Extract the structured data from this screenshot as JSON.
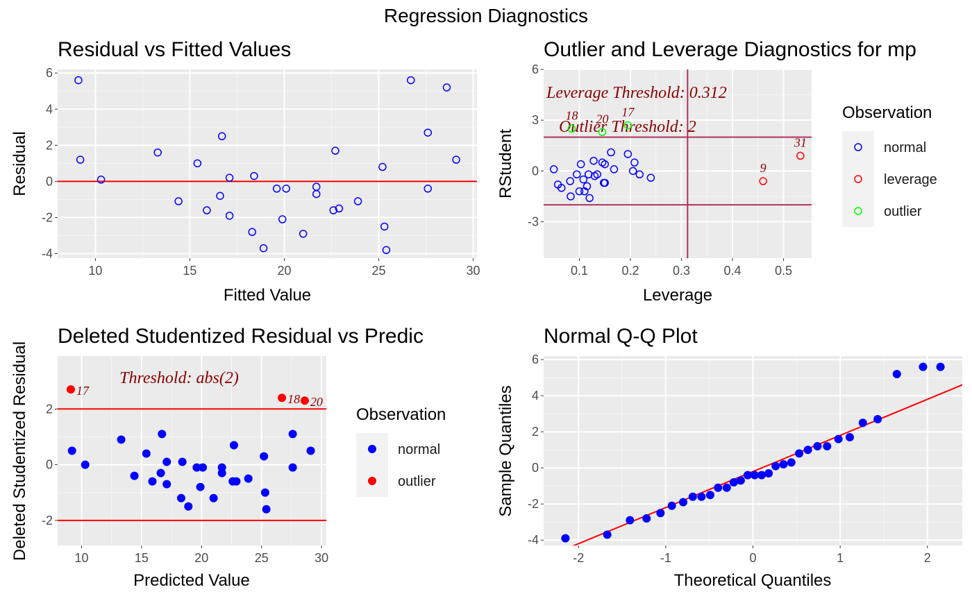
{
  "title": "Regression Diagnostics",
  "colors": {
    "panel": "#ebebeb",
    "grid_major": "#ffffff",
    "grid_minor": "#f5f5f5",
    "normal": "#0000ff",
    "leverage": "#ff0000",
    "outlier": "#00ff00",
    "refline": "#ff0000",
    "threshold_line": "#b03060",
    "annotation": "#8b0000"
  },
  "chart_data": [
    {
      "type": "scatter",
      "title": "Residual vs Fitted Values",
      "xlabel": "Fitted Value",
      "ylabel": "Residual",
      "xlim": [
        8,
        30.2
      ],
      "ylim": [
        -4.25,
        6.2
      ],
      "xticks": [
        10,
        15,
        20,
        25,
        30
      ],
      "yticks": [
        -4,
        -2,
        0,
        2,
        4,
        6
      ],
      "reference_line_y": 0,
      "marker": "open-circle",
      "points": [
        {
          "x": 9.1,
          "y": 5.6
        },
        {
          "x": 9.2,
          "y": 1.2
        },
        {
          "x": 10.3,
          "y": 0.1
        },
        {
          "x": 13.3,
          "y": 1.6
        },
        {
          "x": 14.4,
          "y": -1.1
        },
        {
          "x": 15.4,
          "y": 1.0
        },
        {
          "x": 15.9,
          "y": -1.6
        },
        {
          "x": 16.6,
          "y": -0.8
        },
        {
          "x": 16.7,
          "y": 2.5
        },
        {
          "x": 17.1,
          "y": 0.2
        },
        {
          "x": 17.1,
          "y": -1.9
        },
        {
          "x": 18.3,
          "y": -2.8
        },
        {
          "x": 18.4,
          "y": 0.3
        },
        {
          "x": 18.9,
          "y": -3.7
        },
        {
          "x": 19.6,
          "y": -0.4
        },
        {
          "x": 19.9,
          "y": -2.1
        },
        {
          "x": 20.1,
          "y": -0.4
        },
        {
          "x": 21.0,
          "y": -2.9
        },
        {
          "x": 21.7,
          "y": -0.3
        },
        {
          "x": 21.7,
          "y": -0.7
        },
        {
          "x": 22.6,
          "y": -1.6
        },
        {
          "x": 22.7,
          "y": 1.7
        },
        {
          "x": 22.9,
          "y": -1.5
        },
        {
          "x": 23.9,
          "y": -1.1
        },
        {
          "x": 25.2,
          "y": 0.8
        },
        {
          "x": 25.3,
          "y": -2.5
        },
        {
          "x": 25.4,
          "y": -3.8
        },
        {
          "x": 26.7,
          "y": 5.6
        },
        {
          "x": 27.6,
          "y": 2.7
        },
        {
          "x": 27.6,
          "y": -0.4
        },
        {
          "x": 28.6,
          "y": 5.2
        },
        {
          "x": 29.1,
          "y": 1.2
        }
      ]
    },
    {
      "type": "scatter",
      "title": "Outlier and Leverage Diagnostics for mp",
      "xlabel": "Leverage",
      "ylabel": "RStudent",
      "xlim": [
        0.03,
        0.555
      ],
      "ylim": [
        -5.15,
        6.0
      ],
      "xticks": [
        0.1,
        0.2,
        0.3,
        0.4,
        0.5
      ],
      "yticks": [
        -3,
        0,
        3,
        6
      ],
      "leverage_threshold": 0.312,
      "outlier_threshold": 2,
      "annotations": [
        "Leverage Threshold: 0.312",
        "Outlier Threshold: 2"
      ],
      "legend": {
        "title": "Observation",
        "position": "right",
        "entries": [
          "normal",
          "leverage",
          "outlier"
        ]
      },
      "points": [
        {
          "x": 0.05,
          "y": 0.1,
          "group": "normal"
        },
        {
          "x": 0.058,
          "y": -0.8,
          "group": "normal"
        },
        {
          "x": 0.065,
          "y": -1.0,
          "group": "normal"
        },
        {
          "x": 0.082,
          "y": -0.6,
          "group": "normal"
        },
        {
          "x": 0.083,
          "y": -1.5,
          "group": "normal"
        },
        {
          "x": 0.095,
          "y": -0.2,
          "group": "normal"
        },
        {
          "x": 0.1,
          "y": -1.2,
          "group": "normal"
        },
        {
          "x": 0.103,
          "y": 0.4,
          "group": "normal"
        },
        {
          "x": 0.108,
          "y": -0.5,
          "group": "normal"
        },
        {
          "x": 0.11,
          "y": -1.2,
          "group": "normal"
        },
        {
          "x": 0.115,
          "y": -0.9,
          "group": "normal"
        },
        {
          "x": 0.118,
          "y": -0.2,
          "group": "normal"
        },
        {
          "x": 0.12,
          "y": -1.6,
          "group": "normal"
        },
        {
          "x": 0.128,
          "y": 0.6,
          "group": "normal"
        },
        {
          "x": 0.13,
          "y": -0.3,
          "group": "normal"
        },
        {
          "x": 0.135,
          "y": -0.2,
          "group": "normal"
        },
        {
          "x": 0.145,
          "y": 0.5,
          "group": "normal"
        },
        {
          "x": 0.148,
          "y": -0.7,
          "group": "normal"
        },
        {
          "x": 0.15,
          "y": 0.4,
          "group": "normal"
        },
        {
          "x": 0.15,
          "y": -0.7,
          "group": "normal"
        },
        {
          "x": 0.162,
          "y": 1.1,
          "group": "normal"
        },
        {
          "x": 0.168,
          "y": 0.1,
          "group": "normal"
        },
        {
          "x": 0.195,
          "y": 1.0,
          "group": "normal"
        },
        {
          "x": 0.205,
          "y": 0.0,
          "group": "normal"
        },
        {
          "x": 0.208,
          "y": 0.5,
          "group": "normal"
        },
        {
          "x": 0.218,
          "y": -0.2,
          "group": "normal"
        },
        {
          "x": 0.24,
          "y": -0.4,
          "group": "normal"
        },
        {
          "x": 0.085,
          "y": 2.5,
          "group": "outlier",
          "label": "18"
        },
        {
          "x": 0.145,
          "y": 2.3,
          "group": "outlier",
          "label": "20"
        },
        {
          "x": 0.195,
          "y": 2.7,
          "group": "outlier",
          "label": "17"
        },
        {
          "x": 0.46,
          "y": -0.6,
          "group": "leverage",
          "label": "9"
        },
        {
          "x": 0.533,
          "y": 0.9,
          "group": "leverage",
          "label": "31"
        }
      ]
    },
    {
      "type": "scatter",
      "title": "Deleted Studentized Residual vs Predic",
      "xlabel": "Predicted Value",
      "ylabel": "Deleted Studentized Residual",
      "xlim": [
        8,
        30.4
      ],
      "ylim": [
        -2.9,
        3.9
      ],
      "xticks": [
        10,
        15,
        20,
        25,
        30
      ],
      "yticks": [
        -2,
        0,
        2
      ],
      "threshold": 2,
      "annotation": "Threshold: abs(2)",
      "legend": {
        "title": "Observation",
        "position": "right",
        "entries": [
          "normal",
          "outlier"
        ]
      },
      "points": [
        {
          "x": 9.1,
          "y": 2.7,
          "group": "outlier",
          "label": "17"
        },
        {
          "x": 9.2,
          "y": 0.5,
          "group": "normal"
        },
        {
          "x": 10.3,
          "y": 0.0,
          "group": "normal"
        },
        {
          "x": 13.3,
          "y": 0.9,
          "group": "normal"
        },
        {
          "x": 14.4,
          "y": -0.4,
          "group": "normal"
        },
        {
          "x": 15.4,
          "y": 0.4,
          "group": "normal"
        },
        {
          "x": 15.9,
          "y": -0.6,
          "group": "normal"
        },
        {
          "x": 16.6,
          "y": -0.3,
          "group": "normal"
        },
        {
          "x": 16.7,
          "y": 1.1,
          "group": "normal"
        },
        {
          "x": 17.1,
          "y": 0.1,
          "group": "normal"
        },
        {
          "x": 17.1,
          "y": -0.7,
          "group": "normal"
        },
        {
          "x": 18.3,
          "y": -1.2,
          "group": "normal"
        },
        {
          "x": 18.4,
          "y": 0.1,
          "group": "normal"
        },
        {
          "x": 18.9,
          "y": -1.5,
          "group": "normal"
        },
        {
          "x": 19.6,
          "y": -0.1,
          "group": "normal"
        },
        {
          "x": 19.9,
          "y": -0.8,
          "group": "normal"
        },
        {
          "x": 20.1,
          "y": -0.1,
          "group": "normal"
        },
        {
          "x": 21.0,
          "y": -1.2,
          "group": "normal"
        },
        {
          "x": 21.7,
          "y": -0.1,
          "group": "normal"
        },
        {
          "x": 21.7,
          "y": -0.3,
          "group": "normal"
        },
        {
          "x": 22.6,
          "y": -0.6,
          "group": "normal"
        },
        {
          "x": 22.7,
          "y": 0.7,
          "group": "normal"
        },
        {
          "x": 22.9,
          "y": -0.6,
          "group": "normal"
        },
        {
          "x": 23.9,
          "y": -0.5,
          "group": "normal"
        },
        {
          "x": 25.2,
          "y": 0.3,
          "group": "normal"
        },
        {
          "x": 25.3,
          "y": -1.0,
          "group": "normal"
        },
        {
          "x": 25.4,
          "y": -1.6,
          "group": "normal"
        },
        {
          "x": 26.7,
          "y": 2.4,
          "group": "outlier",
          "label": "18"
        },
        {
          "x": 27.6,
          "y": 1.1,
          "group": "normal"
        },
        {
          "x": 27.6,
          "y": -0.1,
          "group": "normal"
        },
        {
          "x": 28.6,
          "y": 2.3,
          "group": "outlier",
          "label": "20"
        },
        {
          "x": 29.1,
          "y": 0.5,
          "group": "normal"
        }
      ]
    },
    {
      "type": "scatter",
      "title": "Normal Q-Q Plot",
      "xlabel": "Theoretical Quantiles",
      "ylabel": "Sample Quantiles",
      "xlim": [
        -2.4,
        2.4
      ],
      "ylim": [
        -4.3,
        6.2
      ],
      "xticks": [
        -2,
        -1,
        0,
        1,
        2
      ],
      "yticks": [
        -4,
        -2,
        0,
        2,
        4,
        6
      ],
      "qq_line": {
        "x1": -2.4,
        "y1": -5.0,
        "x2": 2.4,
        "y2": 4.6
      },
      "x": [
        -2.15,
        -1.67,
        -1.41,
        -1.22,
        -1.06,
        -0.93,
        -0.8,
        -0.69,
        -0.59,
        -0.49,
        -0.4,
        -0.3,
        -0.22,
        -0.14,
        -0.06,
        0.02,
        0.1,
        0.18,
        0.26,
        0.35,
        0.44,
        0.53,
        0.63,
        0.74,
        0.85,
        0.98,
        1.11,
        1.26,
        1.43,
        1.65,
        1.95,
        2.15
      ],
      "y": [
        -3.9,
        -3.7,
        -2.9,
        -2.8,
        -2.5,
        -2.1,
        -1.9,
        -1.6,
        -1.6,
        -1.5,
        -1.1,
        -1.1,
        -0.8,
        -0.7,
        -0.4,
        -0.4,
        -0.4,
        -0.3,
        0.1,
        0.2,
        0.3,
        0.8,
        1.0,
        1.2,
        1.2,
        1.6,
        1.7,
        2.5,
        2.7,
        5.2,
        5.6,
        5.6
      ]
    }
  ]
}
